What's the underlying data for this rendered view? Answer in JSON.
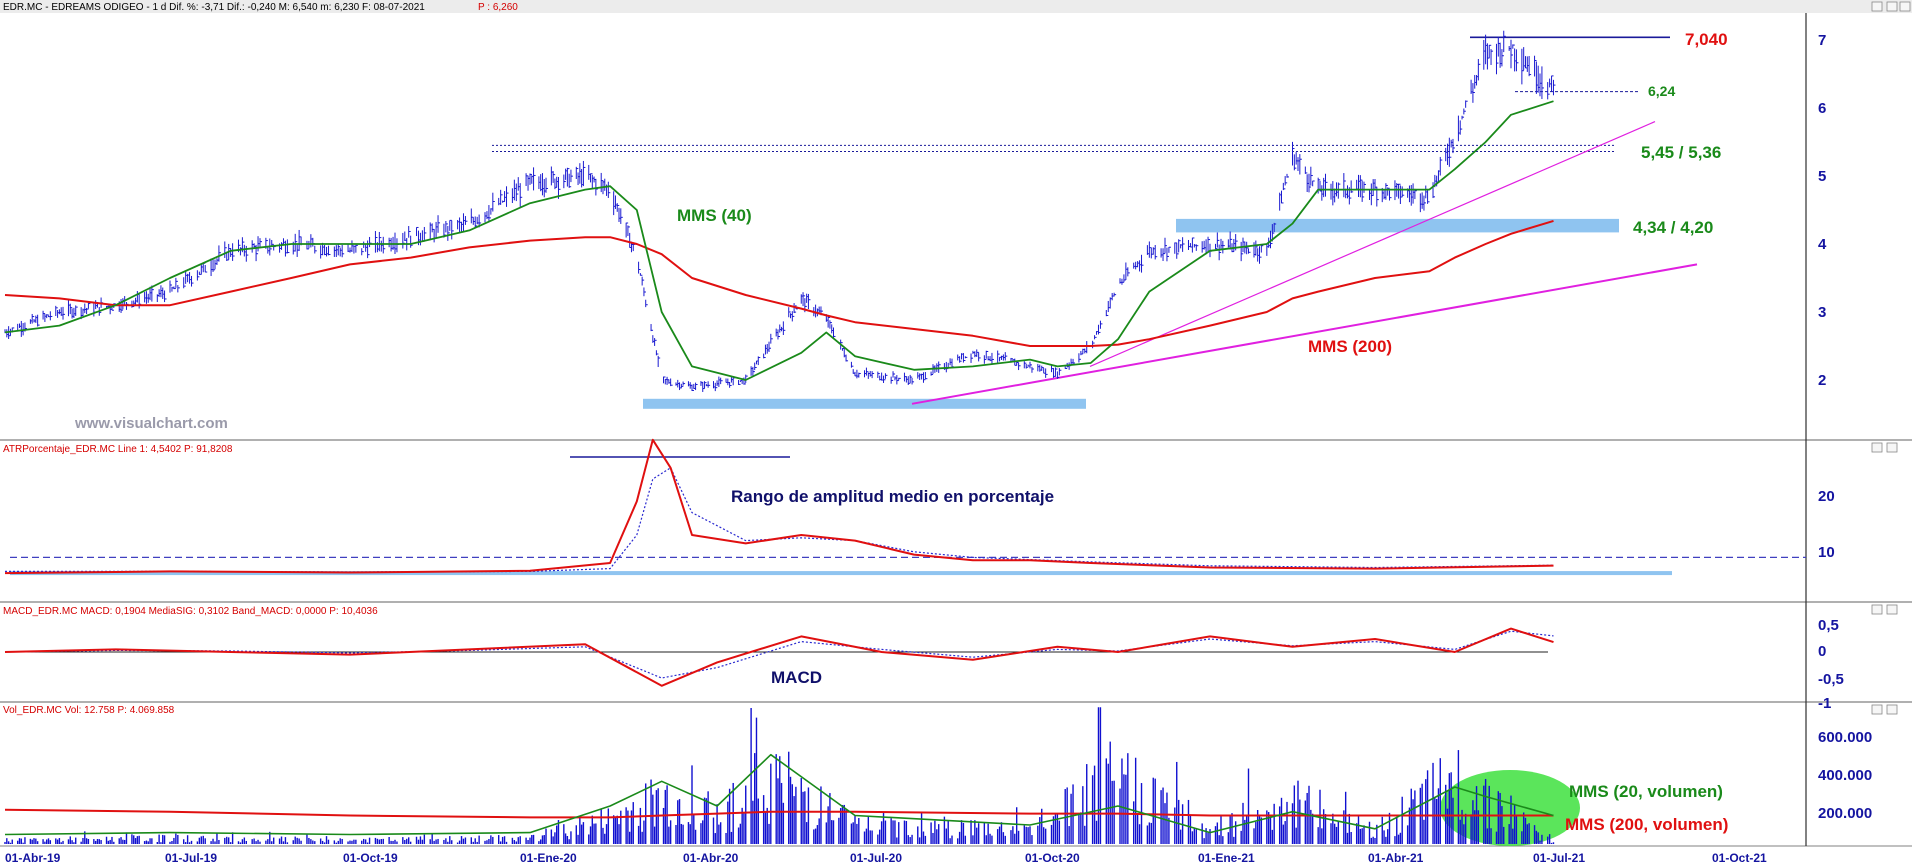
{
  "colors": {
    "price_bars": "#1a1ad0",
    "ma40": "#1a8a1a",
    "ma200": "#e01010",
    "support_band": "#8fc4f0",
    "trendline": "#e020e0",
    "resistance": "#1a1a9a",
    "atr": "#e01010",
    "atr_signal": "#2a2ad0",
    "macd": "#e01010",
    "macd_signal": "#2a2ad0",
    "volume": "#1010d0",
    "vol_ma20": "#1a8a1a",
    "vol_ma200": "#e01010",
    "highlight_ellipse": "#3ee03e",
    "axis_text": "#1414a0"
  },
  "panes": {
    "price": {
      "header_main": "EDR.MC - EDREAMS ODIGEO - 1 d Dif. %: -3,71 Dif.: -0,240 M: 6,540 m: 6,230 F: 08-07-2021",
      "header_last": "P : 6,260",
      "watermark": "www.visualchart.com",
      "y_ticks": [
        "2",
        "3",
        "4",
        "5",
        "6",
        "7"
      ]
    },
    "atr": {
      "header": "ATRPorcentaje_EDR.MC Line 1: 4,5402 P: 91,8208",
      "y_ticks": [
        "10",
        "20"
      ]
    },
    "macd": {
      "header": "MACD_EDR.MC MACD: 0,1904 MediaSIG: 0,3102 Band_MACD: 0,0000 P: 10,4036",
      "y_ticks": [
        "0,5",
        "0",
        "-0,5",
        "-1"
      ]
    },
    "volume": {
      "header": "Vol_EDR.MC Vol: 12.758 P: 4.069.858",
      "y_ticks": [
        "200.000",
        "400.000",
        "600.000"
      ]
    }
  },
  "x_axis_labels": [
    "01-Abr-19",
    "01-Jul-19",
    "01-Oct-19",
    "01-Ene-20",
    "01-Abr-20",
    "01-Jul-20",
    "01-Oct-20",
    "01-Ene-21",
    "01-Abr-21",
    "01-Jul-21",
    "01-Oct-21"
  ],
  "annotations": {
    "ma40": "MMS (40)",
    "ma200": "MMS (200)",
    "resistance_top": "7,040",
    "support_recent": "6,24",
    "zone_upper": "5,45 / 5,36",
    "zone_lower": "4,34 / 4,20",
    "atr_title": "Rango de amplitud medio en porcentaje",
    "macd_title": "MACD",
    "vol_ma20": "MMS (20, volumen)",
    "vol_ma200": "MMS (200, volumen)"
  },
  "chart_data": [
    {
      "type": "line",
      "title": "EDR.MC - EDREAMS ODIGEO",
      "x": [
        "2019-04-01",
        "2019-05-01",
        "2019-06-01",
        "2019-07-01",
        "2019-08-01",
        "2019-09-01",
        "2019-10-01",
        "2019-11-01",
        "2019-12-01",
        "2020-01-01",
        "2020-02-01",
        "2020-02-15",
        "2020-03-01",
        "2020-03-15",
        "2020-04-01",
        "2020-05-01",
        "2020-06-01",
        "2020-06-15",
        "2020-07-01",
        "2020-08-01",
        "2020-09-01",
        "2020-10-01",
        "2020-10-15",
        "2020-11-01",
        "2020-11-15",
        "2020-12-01",
        "2021-01-01",
        "2021-02-01",
        "2021-02-15",
        "2021-03-01",
        "2021-04-01",
        "2021-05-01",
        "2021-05-15",
        "2021-06-01",
        "2021-06-15",
        "2021-07-08"
      ],
      "series": [
        {
          "values": [
            2.7,
            3.0,
            3.1,
            3.3,
            3.9,
            4.0,
            3.9,
            4.1,
            4.3,
            4.9,
            5.0,
            4.8,
            3.8,
            2.0,
            1.9,
            2.0,
            3.2,
            2.9,
            2.1,
            2.0,
            2.4,
            2.2,
            2.1,
            2.5,
            3.4,
            3.9,
            4.0,
            3.9,
            5.3,
            4.8,
            4.8,
            4.7,
            5.6,
            6.8,
            6.9,
            6.26
          ]
        },
        {
          "name": "MMS (40)",
          "values": [
            2.7,
            2.8,
            3.1,
            3.5,
            3.9,
            4.0,
            4.0,
            4.0,
            4.2,
            4.6,
            4.8,
            4.85,
            4.5,
            3.0,
            2.2,
            2.0,
            2.4,
            2.7,
            2.35,
            2.15,
            2.2,
            2.3,
            2.2,
            2.25,
            2.6,
            3.3,
            3.9,
            4.0,
            4.3,
            4.8,
            4.8,
            4.8,
            5.1,
            5.5,
            5.9,
            6.1
          ]
        },
        {
          "name": "MMS (200)",
          "values": [
            3.25,
            3.2,
            3.1,
            3.1,
            3.3,
            3.5,
            3.7,
            3.8,
            3.95,
            4.05,
            4.1,
            4.1,
            4.0,
            3.85,
            3.5,
            3.25,
            3.05,
            2.95,
            2.85,
            2.75,
            2.65,
            2.5,
            2.5,
            2.5,
            2.52,
            2.6,
            2.8,
            3.0,
            3.2,
            3.3,
            3.5,
            3.6,
            3.8,
            4.0,
            4.15,
            4.34
          ]
        }
      ],
      "y_range": [
        1.2,
        7.4
      ],
      "levels": {
        "resistance": 7.04,
        "support_recent": 6.24,
        "zone_upper": [
          5.45,
          5.36
        ],
        "zone_lower": [
          4.34,
          4.2
        ],
        "base_band": 1.65
      },
      "grid": false
    },
    {
      "type": "line",
      "title": "ATRPorcentaje_EDR.MC",
      "x": [
        "2019-04-01",
        "2019-07-01",
        "2019-10-01",
        "2020-01-01",
        "2020-02-15",
        "2020-03-01",
        "2020-03-10",
        "2020-03-20",
        "2020-04-01",
        "2020-05-01",
        "2020-06-01",
        "2020-07-01",
        "2020-08-01",
        "2020-09-01",
        "2020-10-01",
        "2020-11-01",
        "2021-01-01",
        "2021-04-01",
        "2021-07-08"
      ],
      "series": [
        {
          "name": "Line 1",
          "values": [
            3.2,
            3.5,
            3.3,
            3.6,
            5.0,
            16.0,
            27.0,
            22.0,
            10.0,
            8.5,
            10.0,
            9.0,
            6.5,
            5.5,
            5.5,
            5.0,
            4.2,
            4.0,
            4.54
          ]
        },
        {
          "values": [
            3.5,
            3.5,
            3.4,
            3.5,
            4.0,
            10.0,
            20.0,
            22.0,
            14.0,
            9.0,
            9.5,
            9.0,
            7.0,
            6.0,
            5.6,
            5.2,
            4.5,
            4.2,
            4.6
          ]
        }
      ],
      "y_range": [
        2,
        28
      ],
      "levels": {
        "dashed": 6.0,
        "band": 3.2
      },
      "grid": false
    },
    {
      "type": "line",
      "title": "MACD_EDR.MC",
      "x": [
        "2019-04-01",
        "2019-06-01",
        "2019-08-01",
        "2019-10-01",
        "2019-12-01",
        "2020-02-01",
        "2020-03-15",
        "2020-04-15",
        "2020-06-01",
        "2020-07-15",
        "2020-09-01",
        "2020-10-15",
        "2020-11-15",
        "2021-01-01",
        "2021-02-15",
        "2021-04-01",
        "2021-05-15",
        "2021-06-15",
        "2021-07-08"
      ],
      "series": [
        {
          "name": "MACD",
          "values": [
            0.0,
            0.05,
            0.0,
            -0.05,
            0.05,
            0.15,
            -0.65,
            -0.2,
            0.3,
            0.0,
            -0.15,
            0.1,
            0.0,
            0.3,
            0.1,
            0.25,
            0.0,
            0.45,
            0.19
          ]
        },
        {
          "name": "MediaSIG",
          "values": [
            0.0,
            0.03,
            0.02,
            -0.02,
            0.03,
            0.1,
            -0.5,
            -0.3,
            0.2,
            0.05,
            -0.1,
            0.05,
            0.02,
            0.25,
            0.12,
            0.2,
            0.05,
            0.4,
            0.31
          ]
        }
      ],
      "y_range": [
        -1.0,
        0.6
      ],
      "grid": false
    },
    {
      "type": "bar",
      "title": "Vol_EDR.MC",
      "x": [
        "2019-04-01",
        "2019-07-01",
        "2019-10-01",
        "2020-01-01",
        "2020-02-15",
        "2020-03-15",
        "2020-04-15",
        "2020-05-15",
        "2020-07-01",
        "2020-10-01",
        "2020-11-15",
        "2021-01-01",
        "2021-02-15",
        "2021-04-01",
        "2021-05-15",
        "2021-06-01",
        "2021-07-08"
      ],
      "series": [
        {
          "name": "Vol",
          "values": [
            40000,
            60000,
            40000,
            60000,
            250000,
            480000,
            300000,
            700000,
            200000,
            150000,
            700000,
            150000,
            450000,
            120000,
            650000,
            500000,
            12758
          ]
        },
        {
          "name": "MMS (20, volumen)",
          "values": [
            50000,
            60000,
            50000,
            60000,
            200000,
            330000,
            200000,
            470000,
            150000,
            100000,
            200000,
            60000,
            170000,
            80000,
            300000,
            250000,
            150000
          ]
        },
        {
          "name": "MMS (200, volumen)",
          "values": [
            180000,
            170000,
            150000,
            140000,
            140000,
            150000,
            160000,
            170000,
            170000,
            160000,
            160000,
            150000,
            150000,
            150000,
            150000,
            150000,
            150000
          ]
        }
      ],
      "y_range": [
        0,
        720000
      ],
      "grid": false
    }
  ]
}
